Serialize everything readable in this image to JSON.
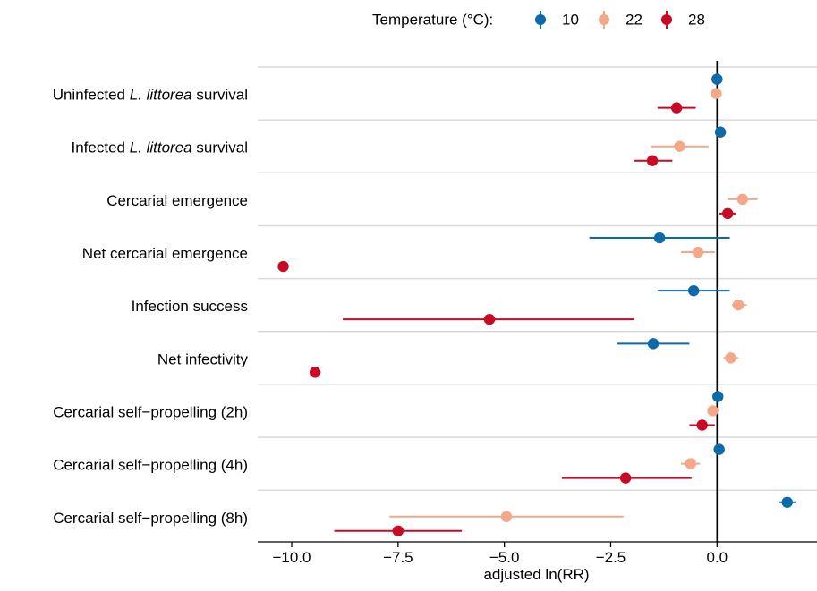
{
  "chart_data": {
    "type": "scatter",
    "xlabel": "adjusted ln(RR)",
    "ylabel": "",
    "xlim": [
      -10.8,
      2.35
    ],
    "xticks": [
      -10.0,
      -7.5,
      -5.0,
      -2.5,
      0.0
    ],
    "xtick_labels": [
      "−10.0",
      "−7.5",
      "−5.0",
      "−2.5",
      "0.0"
    ],
    "reference_line_x": 0,
    "grid": "horizontal separators between categories",
    "legend": {
      "title": "Temperature (°C):",
      "placement": "top",
      "entries": [
        {
          "name": "10",
          "color": "#0a6aab"
        },
        {
          "name": "22",
          "color": "#f2a889"
        },
        {
          "name": "28",
          "color": "#c80a25"
        }
      ]
    },
    "categories": [
      {
        "pre": "Uninfected ",
        "italic": "L. littorea",
        "post": " survival"
      },
      {
        "pre": "Infected ",
        "italic": "L. littorea",
        "post": " survival"
      },
      {
        "pre": "Cercarial emergence",
        "italic": "",
        "post": ""
      },
      {
        "pre": "Net cercarial emergence",
        "italic": "",
        "post": ""
      },
      {
        "pre": "Infection success",
        "italic": "",
        "post": ""
      },
      {
        "pre": "Net infectivity",
        "italic": "",
        "post": ""
      },
      {
        "pre": "Cercarial self−propelling (2h)",
        "italic": "",
        "post": ""
      },
      {
        "pre": "Cercarial self−propelling (4h)",
        "italic": "",
        "post": ""
      },
      {
        "pre": "Cercarial self−propelling (8h)",
        "italic": "",
        "post": ""
      }
    ],
    "series": [
      {
        "name": "10",
        "color": "#0a6aab",
        "points": [
          {
            "category": 0,
            "x": 0.0,
            "lo": null,
            "hi": null
          },
          {
            "category": 1,
            "x": 0.08,
            "lo": null,
            "hi": null
          },
          {
            "category": 2,
            "x": null,
            "lo": null,
            "hi": null
          },
          {
            "category": 3,
            "x": -1.35,
            "lo": -3.0,
            "hi": 0.3
          },
          {
            "category": 4,
            "x": -0.55,
            "lo": -1.4,
            "hi": 0.3
          },
          {
            "category": 5,
            "x": -1.5,
            "lo": -2.35,
            "hi": -0.65
          },
          {
            "category": 6,
            "x": 0.02,
            "lo": null,
            "hi": null
          },
          {
            "category": 7,
            "x": 0.05,
            "lo": null,
            "hi": null
          },
          {
            "category": 8,
            "x": 1.65,
            "lo": 1.45,
            "hi": 1.85
          }
        ]
      },
      {
        "name": "22",
        "color": "#f2a889",
        "points": [
          {
            "category": 0,
            "x": -0.02,
            "lo": null,
            "hi": null
          },
          {
            "category": 1,
            "x": -0.88,
            "lo": -1.55,
            "hi": -0.2
          },
          {
            "category": 2,
            "x": 0.6,
            "lo": 0.25,
            "hi": 0.95
          },
          {
            "category": 3,
            "x": -0.45,
            "lo": -0.85,
            "hi": -0.05
          },
          {
            "category": 4,
            "x": 0.5,
            "lo": 0.35,
            "hi": 0.7
          },
          {
            "category": 5,
            "x": 0.32,
            "lo": 0.15,
            "hi": 0.5
          },
          {
            "category": 6,
            "x": -0.1,
            "lo": null,
            "hi": null
          },
          {
            "category": 7,
            "x": -0.62,
            "lo": -0.85,
            "hi": -0.4
          },
          {
            "category": 8,
            "x": -4.95,
            "lo": -7.7,
            "hi": -2.2
          }
        ]
      },
      {
        "name": "28",
        "color": "#c80a25",
        "points": [
          {
            "category": 0,
            "x": -0.95,
            "lo": -1.4,
            "hi": -0.5
          },
          {
            "category": 1,
            "x": -1.52,
            "lo": -1.95,
            "hi": -1.05
          },
          {
            "category": 2,
            "x": 0.25,
            "lo": 0.05,
            "hi": 0.45
          },
          {
            "category": 3,
            "x": -10.2,
            "lo": null,
            "hi": null
          },
          {
            "category": 4,
            "x": -5.35,
            "lo": -8.8,
            "hi": -1.95
          },
          {
            "category": 5,
            "x": -9.45,
            "lo": null,
            "hi": null
          },
          {
            "category": 6,
            "x": -0.35,
            "lo": -0.65,
            "hi": -0.05
          },
          {
            "category": 7,
            "x": -2.15,
            "lo": -3.65,
            "hi": -0.6
          },
          {
            "category": 8,
            "x": -7.5,
            "lo": -9.0,
            "hi": -6.0
          }
        ]
      }
    ]
  }
}
